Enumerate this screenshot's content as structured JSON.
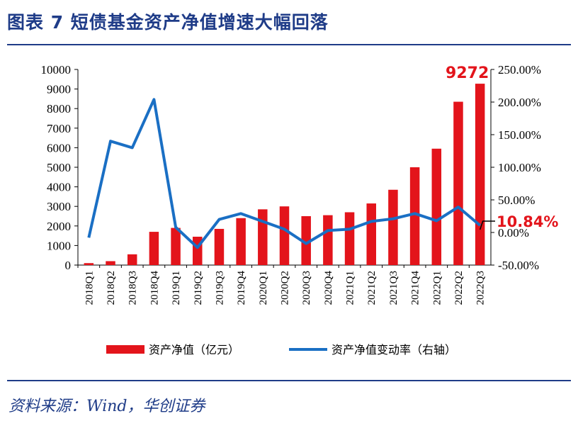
{
  "header": {
    "title": "图表 7  短债基金资产净值增速大幅回落"
  },
  "footer": {
    "source": "资料来源：Wind，华创证券"
  },
  "colors": {
    "bar": "#e3141b",
    "line": "#1a6fc4",
    "title": "#1f3c88"
  },
  "chart_data": {
    "type": "bar+line",
    "categories": [
      "2018Q1",
      "2018Q2",
      "2018Q3",
      "2018Q4",
      "2019Q1",
      "2019Q2",
      "2019Q3",
      "2019Q4",
      "2020Q1",
      "2020Q2",
      "2020Q3",
      "2020Q4",
      "2021Q1",
      "2021Q2",
      "2021Q3",
      "2021Q4",
      "2022Q1",
      "2022Q2",
      "2022Q3"
    ],
    "series": [
      {
        "name": "资产净值（亿元）",
        "axis": "left",
        "kind": "bar",
        "values": [
          100,
          200,
          550,
          1700,
          1900,
          1450,
          1850,
          2400,
          2850,
          3000,
          2500,
          2550,
          2700,
          3150,
          3850,
          5000,
          5950,
          8350,
          9272
        ]
      },
      {
        "name": "资产净值变动率（右轴）",
        "axis": "right",
        "kind": "line",
        "values": [
          -8,
          140,
          130,
          204,
          8,
          -23,
          20,
          29,
          17,
          5,
          -17,
          3,
          5,
          17,
          21,
          29,
          18,
          39,
          10.84
        ]
      }
    ],
    "y_left": {
      "min": 0,
      "max": 10000,
      "ticks": [
        "0",
        "1000",
        "2000",
        "3000",
        "4000",
        "5000",
        "6000",
        "7000",
        "8000",
        "9000",
        "10000"
      ]
    },
    "y_right": {
      "min": -50,
      "max": 250,
      "ticks": [
        "-50.00%",
        "0.00%",
        "50.00%",
        "100.00%",
        "150.00%",
        "200.00%",
        "250.00%"
      ]
    },
    "annotations": {
      "last_bar_label": "9272",
      "last_line_label": "10.84%"
    },
    "legend": {
      "placement": "bottom",
      "bar_label": "资产净值（亿元）",
      "line_label": "资产净值变动率（右轴）"
    }
  }
}
